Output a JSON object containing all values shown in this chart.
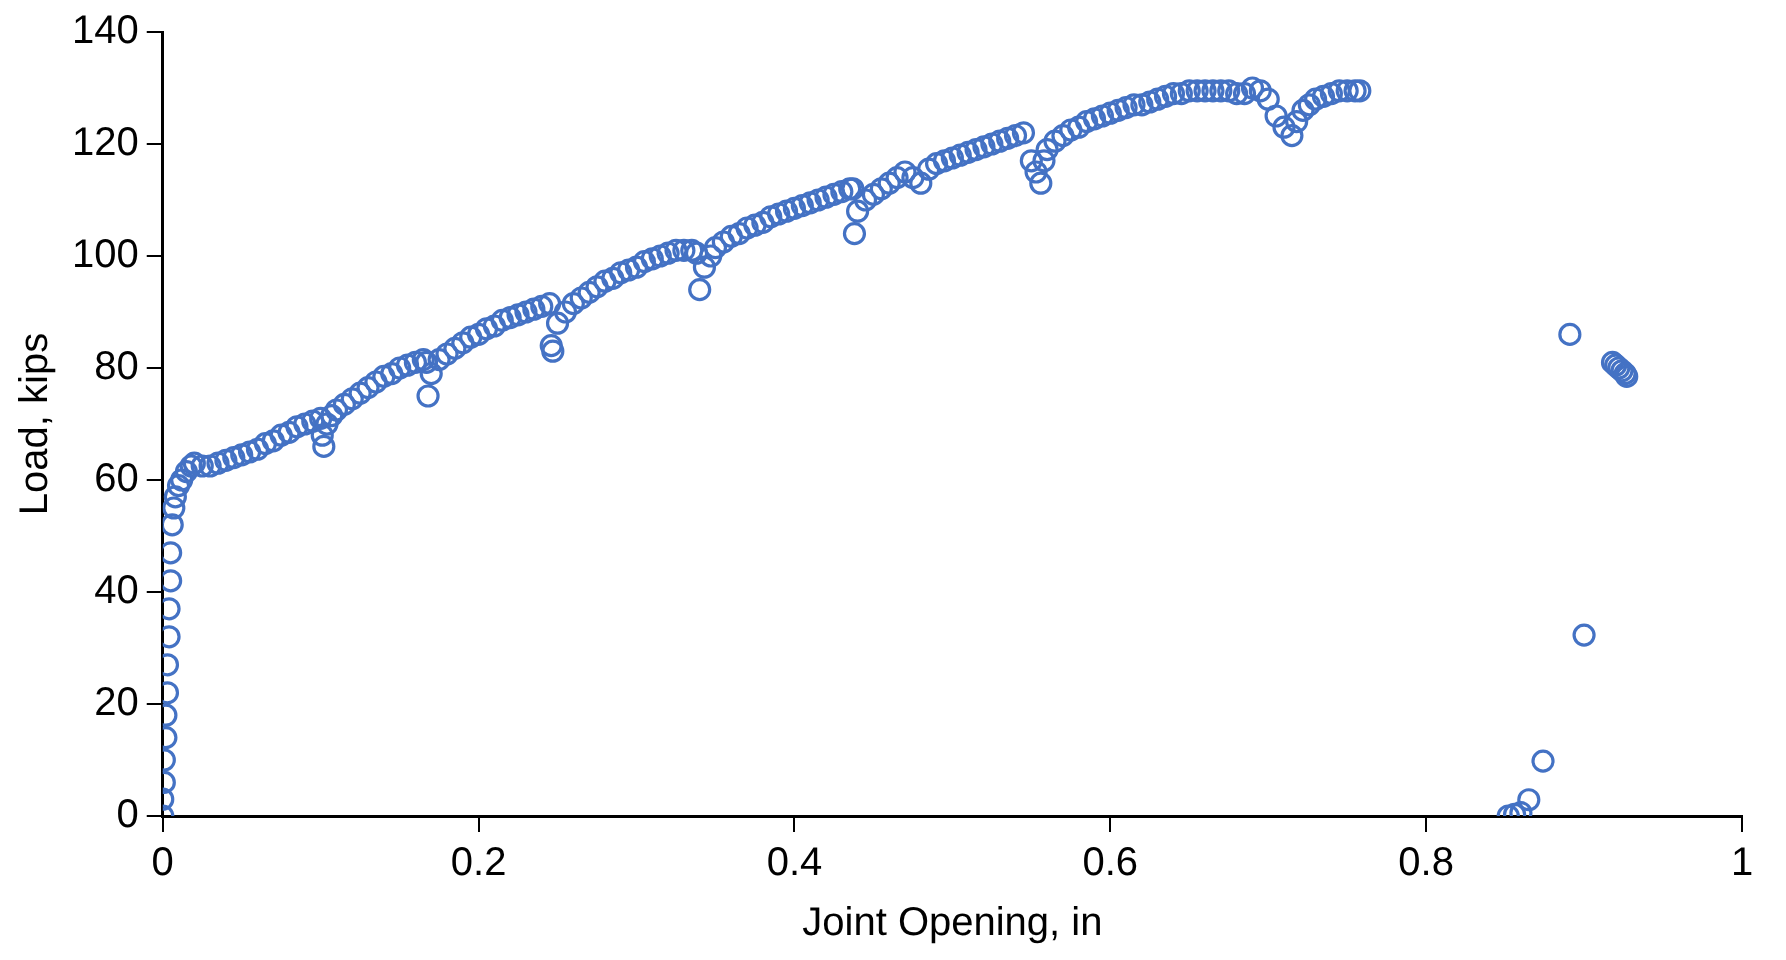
{
  "chart_data": {
    "type": "scatter",
    "xlabel": "Joint Opening, in",
    "ylabel": "Load, kips",
    "xlim": [
      0,
      1
    ],
    "xticks": [
      0,
      0.2,
      0.4,
      0.6,
      0.8,
      1
    ],
    "ylim": [
      0,
      140
    ],
    "yticks": [
      0,
      20,
      40,
      60,
      80,
      100,
      120,
      140
    ],
    "grid": false,
    "legend": false,
    "marker": "circle",
    "series": [
      {
        "color": "#4472c4",
        "x": [
          0,
          0,
          0.001,
          0.001,
          0.002,
          0.002,
          0.003,
          0.003,
          0.004,
          0.004,
          0.005,
          0.005,
          0.006,
          0.007,
          0.008,
          0.01,
          0.012,
          0.015,
          0.018,
          0.02,
          0.025,
          0.03,
          0.035,
          0.04,
          0.045,
          0.05,
          0.055,
          0.06,
          0.065,
          0.07,
          0.075,
          0.08,
          0.085,
          0.09,
          0.095,
          0.1,
          0.101,
          0.102,
          0.104,
          0.107,
          0.11,
          0.115,
          0.12,
          0.125,
          0.13,
          0.135,
          0.14,
          0.145,
          0.15,
          0.155,
          0.16,
          0.165,
          0.167,
          0.168,
          0.17,
          0.175,
          0.18,
          0.185,
          0.19,
          0.195,
          0.2,
          0.205,
          0.21,
          0.215,
          0.22,
          0.225,
          0.23,
          0.235,
          0.24,
          0.245,
          0.246,
          0.247,
          0.25,
          0.255,
          0.26,
          0.265,
          0.27,
          0.275,
          0.28,
          0.285,
          0.29,
          0.295,
          0.3,
          0.305,
          0.31,
          0.315,
          0.32,
          0.325,
          0.33,
          0.335,
          0.338,
          0.34,
          0.343,
          0.347,
          0.35,
          0.355,
          0.36,
          0.365,
          0.37,
          0.375,
          0.38,
          0.385,
          0.39,
          0.395,
          0.4,
          0.405,
          0.41,
          0.415,
          0.42,
          0.425,
          0.43,
          0.435,
          0.437,
          0.438,
          0.44,
          0.445,
          0.45,
          0.455,
          0.46,
          0.465,
          0.47,
          0.475,
          0.48,
          0.485,
          0.49,
          0.495,
          0.5,
          0.505,
          0.51,
          0.515,
          0.52,
          0.525,
          0.53,
          0.535,
          0.54,
          0.545,
          0.55,
          0.553,
          0.556,
          0.558,
          0.56,
          0.565,
          0.57,
          0.575,
          0.58,
          0.585,
          0.59,
          0.595,
          0.6,
          0.605,
          0.61,
          0.615,
          0.62,
          0.625,
          0.63,
          0.635,
          0.64,
          0.645,
          0.65,
          0.655,
          0.66,
          0.665,
          0.67,
          0.675,
          0.68,
          0.685,
          0.69,
          0.695,
          0.7,
          0.705,
          0.71,
          0.715,
          0.718,
          0.722,
          0.726,
          0.73,
          0.735,
          0.74,
          0.745,
          0.75,
          0.755,
          0.758,
          0.852,
          0.856,
          0.86,
          0.865,
          0.874,
          0.891,
          0.9,
          0.918,
          0.92,
          0.922,
          0.924,
          0.926,
          0.927
        ],
        "values": [
          0,
          3,
          6,
          10,
          14,
          18,
          22,
          27,
          32,
          37,
          42,
          47,
          52,
          55,
          57,
          59,
          60,
          61.5,
          62.5,
          63,
          62.5,
          62.5,
          63,
          63.5,
          64,
          64.5,
          65,
          65.5,
          66.5,
          67,
          68,
          68.5,
          69.5,
          70,
          70.5,
          71,
          68,
          66,
          70,
          71.5,
          72.5,
          73.5,
          74.5,
          75.5,
          76.5,
          77.5,
          78.5,
          79,
          80,
          80.5,
          81,
          81.5,
          81,
          75,
          79,
          81.5,
          82.5,
          83.5,
          84.5,
          85.5,
          86,
          87,
          87.5,
          88.5,
          89,
          89.5,
          90,
          90.5,
          91,
          91.5,
          84,
          83,
          88,
          90,
          91.5,
          92.5,
          93.5,
          94.5,
          95.5,
          96,
          97,
          97.5,
          98,
          99,
          99.5,
          100,
          100.5,
          101,
          101,
          101,
          100.5,
          94,
          98,
          100,
          101.5,
          102.5,
          103.5,
          104,
          105,
          105.5,
          106,
          107,
          107.5,
          108,
          108.5,
          109,
          109.5,
          110,
          110.5,
          111,
          111.5,
          112,
          112,
          104,
          108,
          110,
          111,
          112,
          113,
          114,
          115,
          114,
          113,
          115.5,
          116.5,
          117,
          117.5,
          118,
          118.5,
          119,
          119.5,
          120,
          120.5,
          121,
          121.5,
          122,
          117,
          115,
          113,
          117,
          119,
          120.5,
          121.5,
          122.5,
          123,
          124,
          124.5,
          125,
          125.5,
          126,
          126.5,
          127,
          127,
          127.5,
          128,
          128.5,
          129,
          129,
          129.5,
          129.5,
          129.5,
          129.5,
          129.5,
          129.5,
          129,
          129,
          130,
          129.5,
          128,
          125,
          123,
          121.5,
          124,
          126,
          127,
          128,
          128.5,
          129,
          129.5,
          129.5,
          129.5,
          129.5,
          0,
          0.3,
          0.6,
          2.9,
          9.8,
          86,
          32.3,
          81,
          80.5,
          80,
          79.5,
          79,
          78.5
        ]
      }
    ]
  }
}
